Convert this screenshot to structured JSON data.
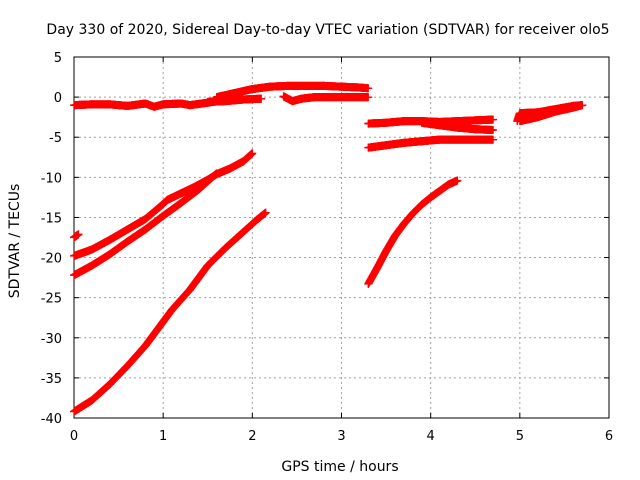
{
  "chart_data": {
    "type": "scatter",
    "title": "Day 330 of 2020, Sidereal Day-to-day VTEC variation (SDTVAR) for receiver olo5",
    "xlabel": "GPS time / hours",
    "ylabel": "SDTVAR / TECUs",
    "xlim": [
      0,
      6
    ],
    "ylim": [
      -40,
      5
    ],
    "x_ticks": [
      "0",
      "1",
      "2",
      "3",
      "4",
      "5",
      "6"
    ],
    "y_ticks": [
      "5",
      "0",
      "-5",
      "-10",
      "-15",
      "-20",
      "-25",
      "-30",
      "-35",
      "-40"
    ],
    "grid": true,
    "marker": "plus",
    "color": "#ff0000",
    "series": [
      {
        "x": [
          0.0,
          0.2,
          0.4,
          0.6,
          0.8,
          0.9,
          1.0,
          1.2,
          1.3,
          1.5,
          1.6
        ],
        "y": [
          -1.0,
          -0.9,
          -0.9,
          -1.1,
          -0.8,
          -1.2,
          -0.9,
          -0.8,
          -1.0,
          -0.7,
          -0.5
        ]
      },
      {
        "x": [
          0.0,
          0.05
        ],
        "y": [
          -17.5,
          -17.1
        ]
      },
      {
        "x": [
          0.0,
          0.2,
          0.4,
          0.6,
          0.8,
          0.95,
          1.05,
          1.2,
          1.35,
          1.5,
          1.6,
          1.75,
          1.9,
          2.0
        ],
        "y": [
          -19.8,
          -19.0,
          -17.8,
          -16.5,
          -15.2,
          -13.8,
          -12.8,
          -12.0,
          -11.2,
          -10.3,
          -9.6,
          -8.9,
          -8.0,
          -7.0
        ]
      },
      {
        "x": [
          0.0,
          0.2,
          0.4,
          0.6,
          0.8,
          1.0,
          1.2,
          1.4,
          1.6
        ],
        "y": [
          -22.2,
          -21.0,
          -19.6,
          -18.0,
          -16.5,
          -14.8,
          -13.2,
          -11.5,
          -9.5
        ]
      },
      {
        "x": [
          0.0,
          0.2,
          0.4,
          0.6,
          0.8,
          1.0,
          1.1,
          1.3,
          1.5,
          1.7,
          1.9,
          2.05,
          2.15
        ],
        "y": [
          -39.2,
          -37.8,
          -35.8,
          -33.5,
          -31.0,
          -28.0,
          -26.5,
          -24.0,
          -21.0,
          -18.8,
          -16.8,
          -15.3,
          -14.4
        ]
      },
      {
        "x": [
          1.6,
          1.8,
          2.0,
          2.2,
          2.4,
          2.6,
          2.8,
          3.0,
          3.2,
          3.3
        ],
        "y": [
          0.0,
          0.5,
          1.0,
          1.3,
          1.4,
          1.4,
          1.4,
          1.3,
          1.2,
          1.1
        ]
      },
      {
        "x": [
          1.5,
          1.7,
          1.9,
          2.1
        ],
        "y": [
          -0.6,
          -0.5,
          -0.3,
          -0.2
        ]
      },
      {
        "x": [
          2.35,
          2.45,
          2.55,
          2.7,
          2.9,
          3.1,
          3.3
        ],
        "y": [
          0.1,
          -0.5,
          -0.2,
          0.0,
          0.0,
          0.0,
          0.0
        ]
      },
      {
        "x": [
          3.3,
          3.5,
          3.7,
          3.9,
          4.1,
          4.3,
          4.5,
          4.7
        ],
        "y": [
          -3.3,
          -3.2,
          -3.0,
          -3.0,
          -3.1,
          -3.0,
          -2.9,
          -2.8
        ]
      },
      {
        "x": [
          3.9,
          4.1,
          4.3,
          4.5,
          4.7
        ],
        "y": [
          -3.2,
          -3.5,
          -3.8,
          -4.0,
          -4.1
        ]
      },
      {
        "x": [
          3.3,
          3.5,
          3.7,
          3.9,
          4.1,
          4.3,
          4.5,
          4.7
        ],
        "y": [
          -6.3,
          -6.0,
          -5.7,
          -5.5,
          -5.3,
          -5.3,
          -5.3,
          -5.3
        ]
      },
      {
        "x": [
          3.3,
          3.4,
          3.5,
          3.6,
          3.7,
          3.8,
          3.9,
          4.0,
          4.1,
          4.2,
          4.3
        ],
        "y": [
          -23.3,
          -21.3,
          -19.2,
          -17.3,
          -15.8,
          -14.5,
          -13.4,
          -12.5,
          -11.7,
          -10.9,
          -10.4
        ]
      },
      {
        "x": [
          4.97,
          5.0,
          5.2,
          5.4,
          5.6,
          5.7
        ],
        "y": [
          -3.0,
          -2.0,
          -1.9,
          -1.5,
          -1.1,
          -1.0
        ]
      },
      {
        "x": [
          5.0,
          5.2,
          5.4,
          5.6,
          5.7
        ],
        "y": [
          -3.0,
          -2.5,
          -1.8,
          -1.3,
          -1.0
        ]
      }
    ]
  }
}
